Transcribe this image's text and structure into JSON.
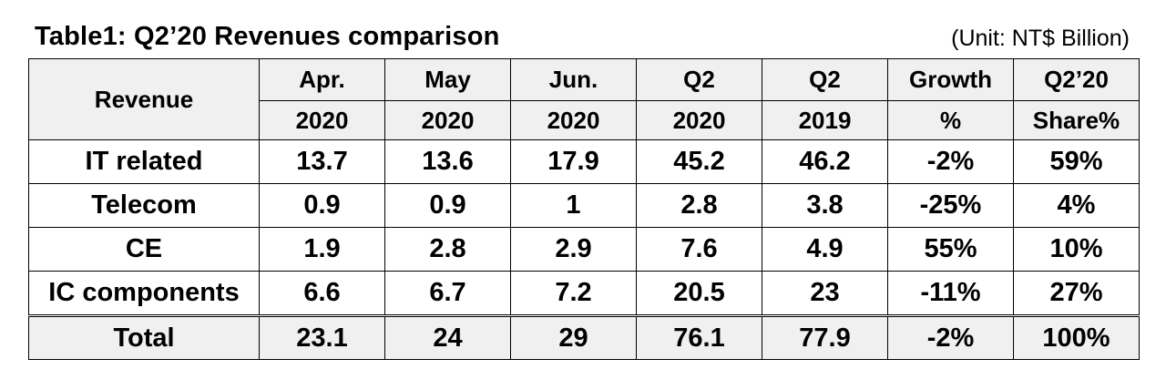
{
  "title": "Table1: Q2’20 Revenues comparison",
  "unit": "(Unit: NT$ Billion)",
  "header": {
    "row1": [
      "Revenue",
      "Apr.",
      "May",
      "Jun.",
      "Q2",
      "Q2",
      "Growth",
      "Q2’20"
    ],
    "row2": [
      "2020",
      "2020",
      "2020",
      "2020",
      "2019",
      "%",
      "Share%"
    ]
  },
  "rows": [
    {
      "name": "IT related",
      "cells": [
        "13.7",
        "13.6",
        "17.9",
        "45.2",
        "46.2",
        "-2%",
        "59%"
      ]
    },
    {
      "name": "Telecom",
      "cells": [
        "0.9",
        "0.9",
        "1",
        "2.8",
        "3.8",
        "-25%",
        "4%"
      ]
    },
    {
      "name": "CE",
      "cells": [
        "1.9",
        "2.8",
        "2.9",
        "7.6",
        "4.9",
        "55%",
        "10%"
      ]
    },
    {
      "name": "IC components",
      "cells": [
        "6.6",
        "6.7",
        "7.2",
        "20.5",
        "23",
        "-11%",
        "27%"
      ]
    }
  ],
  "total": {
    "name": "Total",
    "cells": [
      "23.1",
      "24",
      "29",
      "76.1",
      "77.9",
      "-2%",
      "100%"
    ]
  },
  "colors": {
    "header_background": "#f0f0f0",
    "total_background": "#f0f0f0",
    "border": "#000000"
  }
}
